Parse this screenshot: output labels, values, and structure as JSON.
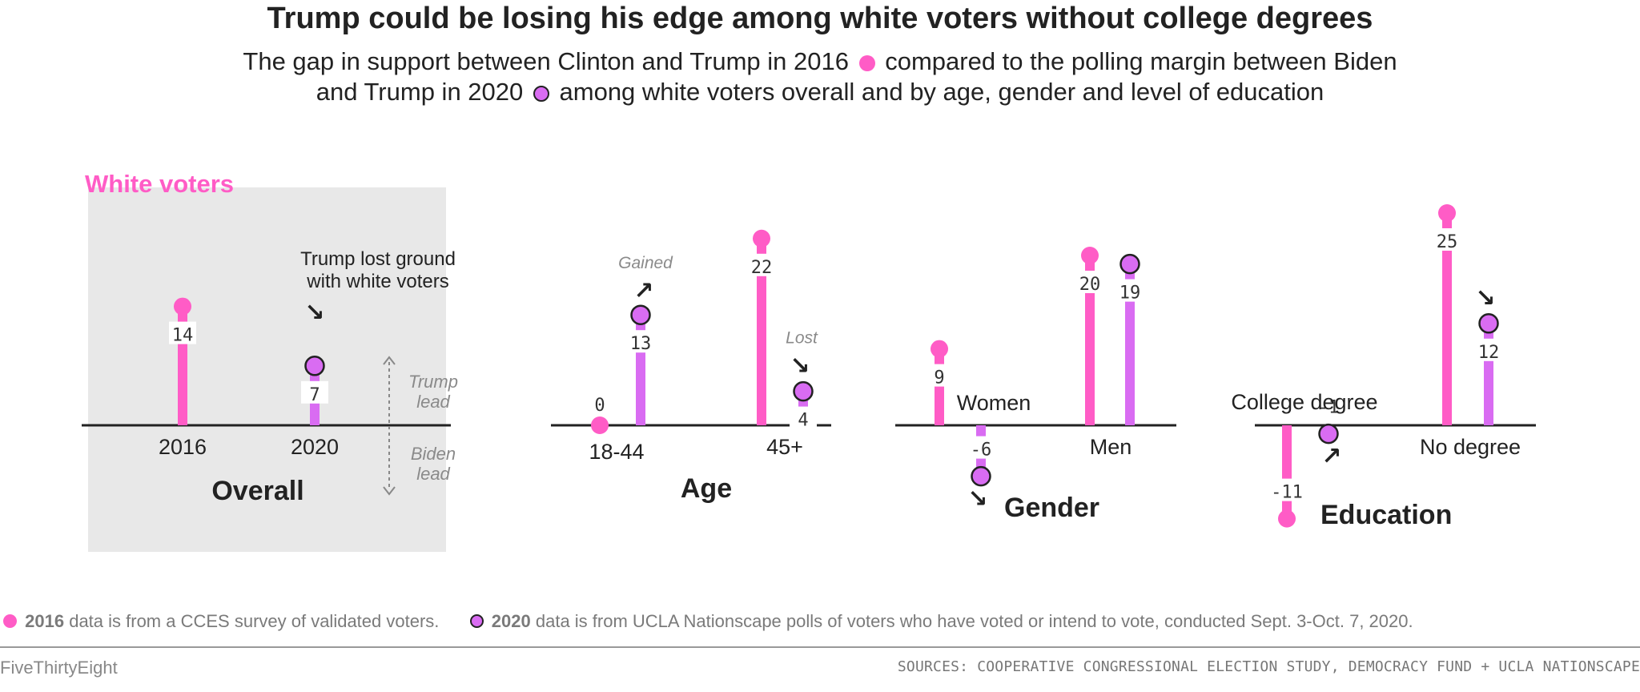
{
  "title": "Trump could be losing his edge among white voters without college degrees",
  "subtitle": {
    "part1": "The gap in support between Clinton and Trump in 2016",
    "part2": "compared to the polling margin between Biden",
    "part3": "and Trump in 2020",
    "part4": "among white voters overall and by age, gender and level of education"
  },
  "colors": {
    "2016": "#ff5cc6",
    "2020": "#d96cf2",
    "panel_bg": "#e8e8e8",
    "accent": "#ff5cc6"
  },
  "chart_data": {
    "type": "bar",
    "series": [
      {
        "name": "2016",
        "marker": "dot"
      },
      {
        "name": "2020",
        "marker": "outlined-dot"
      }
    ],
    "panels": [
      {
        "label": "Overall",
        "highlight_label": "White voters",
        "categories": [
          {
            "label": "2016",
            "points": [
              {
                "series": "2016",
                "value": 14
              }
            ]
          },
          {
            "label": "2020",
            "points": [
              {
                "series": "2020",
                "value": 7
              }
            ]
          }
        ],
        "annotations": [
          {
            "text": "Trump lost ground",
            "arrow": "↘"
          },
          {
            "text": "with white voters"
          }
        ],
        "axis_guide": {
          "up": [
            "Trump",
            "lead"
          ],
          "down": [
            "Biden",
            "lead"
          ]
        }
      },
      {
        "label": "Age",
        "categories": [
          {
            "label": "18-44",
            "points": [
              {
                "series": "2016",
                "value": 0
              },
              {
                "series": "2020",
                "value": 13
              }
            ],
            "annotation": {
              "text": "Gained",
              "arrow": "↗"
            }
          },
          {
            "label": "45+",
            "points": [
              {
                "series": "2016",
                "value": 22
              },
              {
                "series": "2020",
                "value": 4
              }
            ],
            "annotation": {
              "text": "Lost",
              "arrow": "↘"
            }
          }
        ]
      },
      {
        "label": "Gender",
        "categories": [
          {
            "label": "Women",
            "points": [
              {
                "series": "2016",
                "value": 9
              },
              {
                "series": "2020",
                "value": -6
              }
            ],
            "annotation": {
              "arrow": "↘"
            }
          },
          {
            "label": "Men",
            "points": [
              {
                "series": "2016",
                "value": 20
              },
              {
                "series": "2020",
                "value": 19
              }
            ]
          }
        ]
      },
      {
        "label": "Education",
        "categories": [
          {
            "label": "College degree",
            "points": [
              {
                "series": "2016",
                "value": -11
              },
              {
                "series": "2020",
                "value": -1
              }
            ],
            "annotation": {
              "arrow": "↗"
            }
          },
          {
            "label": "No degree",
            "points": [
              {
                "series": "2016",
                "value": 25
              },
              {
                "series": "2020",
                "value": 12
              }
            ],
            "annotation": {
              "arrow": "↘"
            }
          }
        ]
      }
    ]
  },
  "notes": {
    "y2016": "2016",
    "text2016": "data is from a CCES survey of validated voters.",
    "y2020": "2020",
    "text2020": "data is from UCLA Nationscape polls of voters who have voted or intend to vote, conducted Sept. 3-Oct. 7, 2020."
  },
  "brand": "FiveThirtyEight",
  "sources": "SOURCES: COOPERATIVE CONGRESSIONAL ELECTION STUDY, DEMOCRACY FUND + UCLA NATIONSCAPE"
}
